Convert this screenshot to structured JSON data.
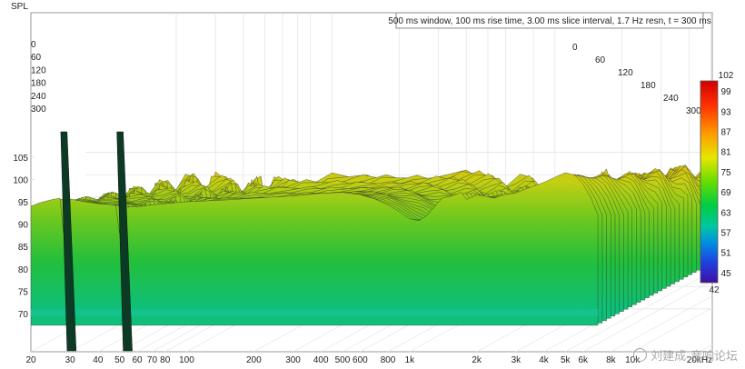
{
  "chart_data": {
    "type": "waterfall",
    "ylabel": "SPL",
    "info": "500 ms window, 100 ms rise time, 3.00 ms slice interval, 1.7 Hz resn, t =  300 ms",
    "xunit": "kHz",
    "xlim": [
      20,
      20000
    ],
    "x_scale": "log",
    "ylim": [
      65,
      108
    ],
    "x_ticks": [
      {
        "value": 20,
        "label": "20"
      },
      {
        "value": 30,
        "label": "30"
      },
      {
        "value": 40,
        "label": "40"
      },
      {
        "value": 50,
        "label": "50"
      },
      {
        "value": 60,
        "label": "60"
      },
      {
        "value": 70,
        "label": "70"
      },
      {
        "value": 80,
        "label": "80"
      },
      {
        "value": 100,
        "label": "100"
      },
      {
        "value": 200,
        "label": "200"
      },
      {
        "value": 300,
        "label": "300"
      },
      {
        "value": 400,
        "label": "400"
      },
      {
        "value": 500,
        "label": "500"
      },
      {
        "value": 600,
        "label": "600"
      },
      {
        "value": 800,
        "label": "800"
      },
      {
        "value": 1000,
        "label": "1k"
      },
      {
        "value": 2000,
        "label": "2k"
      },
      {
        "value": 3000,
        "label": "3k"
      },
      {
        "value": 4000,
        "label": "4k"
      },
      {
        "value": 5000,
        "label": "5k"
      },
      {
        "value": 6000,
        "label": "6k"
      },
      {
        "value": 8000,
        "label": "8k"
      },
      {
        "value": 10000,
        "label": "10k"
      },
      {
        "value": 20000,
        "label": "20kHz"
      }
    ],
    "y_ticks": [
      70,
      75,
      80,
      85,
      90,
      95,
      100,
      105
    ],
    "time_labels_ms": [
      "0",
      "60",
      "120",
      "180",
      "240",
      "300"
    ],
    "colorbar": {
      "min": 42,
      "max": 102,
      "labels": [
        "102",
        "99",
        "93",
        "87",
        "81",
        "75",
        "69",
        "63",
        "57",
        "51",
        "45",
        "42"
      ]
    },
    "front_slice_t0": {
      "freq_hz": [
        20,
        22,
        25,
        27,
        28,
        30,
        35,
        40,
        45,
        48,
        50,
        52,
        55,
        60,
        70,
        80,
        100,
        150,
        200,
        300,
        400,
        500,
        600,
        700,
        800,
        900,
        1000,
        1100,
        1200,
        1400,
        1600,
        1700,
        1800,
        2000,
        2200,
        2400,
        2600,
        3000,
        3300,
        3600,
        4000,
        4500,
        5000,
        5500,
        6000,
        6500,
        7000
      ],
      "spl_db": [
        94.0,
        94.8,
        95.5,
        95.8,
        88.0,
        95.6,
        95.0,
        94.6,
        94.4,
        94.2,
        88.0,
        94.0,
        93.8,
        93.9,
        94.3,
        94.6,
        95.0,
        95.4,
        95.8,
        96.3,
        96.9,
        97.1,
        96.6,
        95.6,
        94.3,
        92.8,
        91.2,
        90.8,
        92.0,
        95.8,
        96.5,
        97.2,
        95.5,
        96.5,
        96.2,
        95.8,
        96.5,
        97.0,
        97.8,
        98.5,
        99.3,
        100.5,
        101.5,
        101.0,
        99.0,
        96.0,
        92.0
      ]
    },
    "rear_slice_t300_floor_db": 71.0,
    "watermark": "刘建成-音响论坛"
  }
}
